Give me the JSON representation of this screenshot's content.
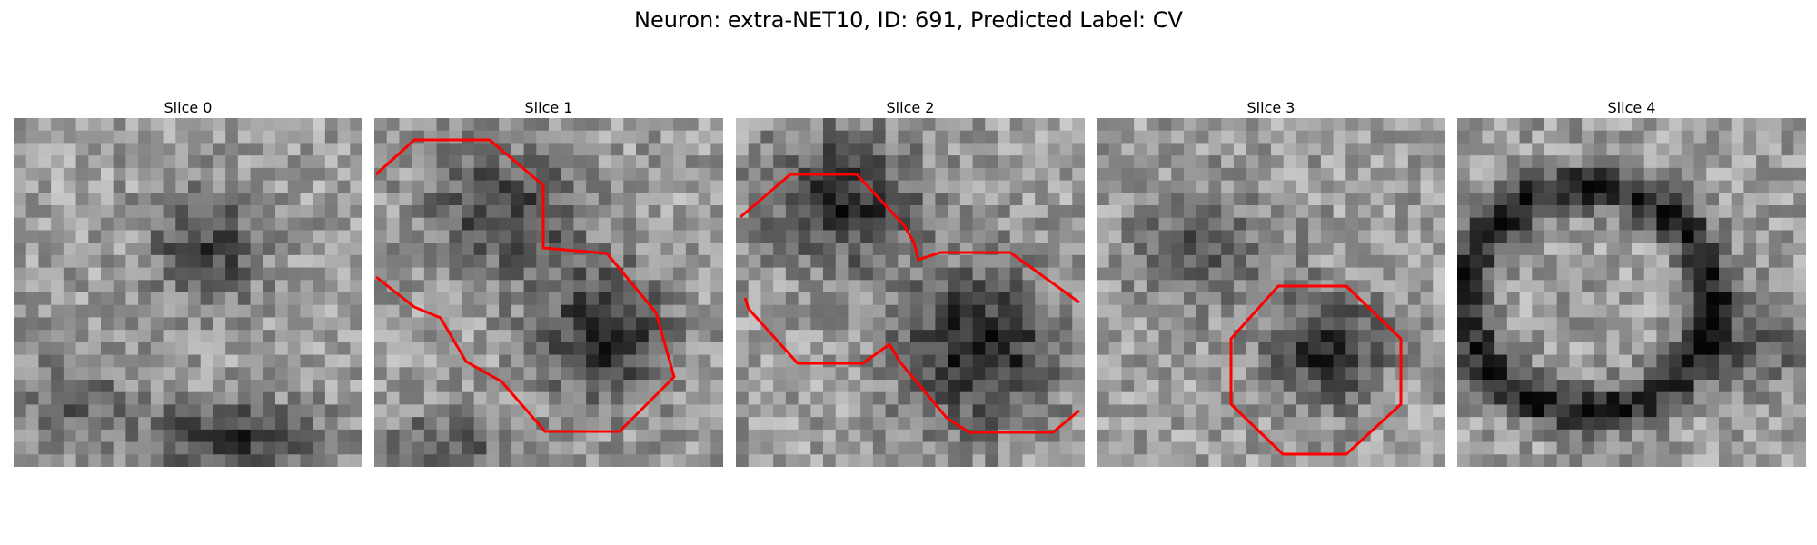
{
  "figure": {
    "title": "Neuron: extra-NET10, ID: 691, Predicted Label: CV"
  },
  "slices": [
    {
      "title": "Slice 0",
      "contours": []
    },
    {
      "title": "Slice 1",
      "contours": [
        "upper-left contour",
        "lower-right contour"
      ]
    },
    {
      "title": "Slice 2",
      "contours": [
        "upper-left contour",
        "lower-right contour"
      ]
    },
    {
      "title": "Slice 3",
      "contours": [
        "octagon contour"
      ]
    },
    {
      "title": "Slice 4",
      "contours": []
    }
  ],
  "colors": {
    "contour": "#ff0000",
    "background": "#ffffff"
  }
}
